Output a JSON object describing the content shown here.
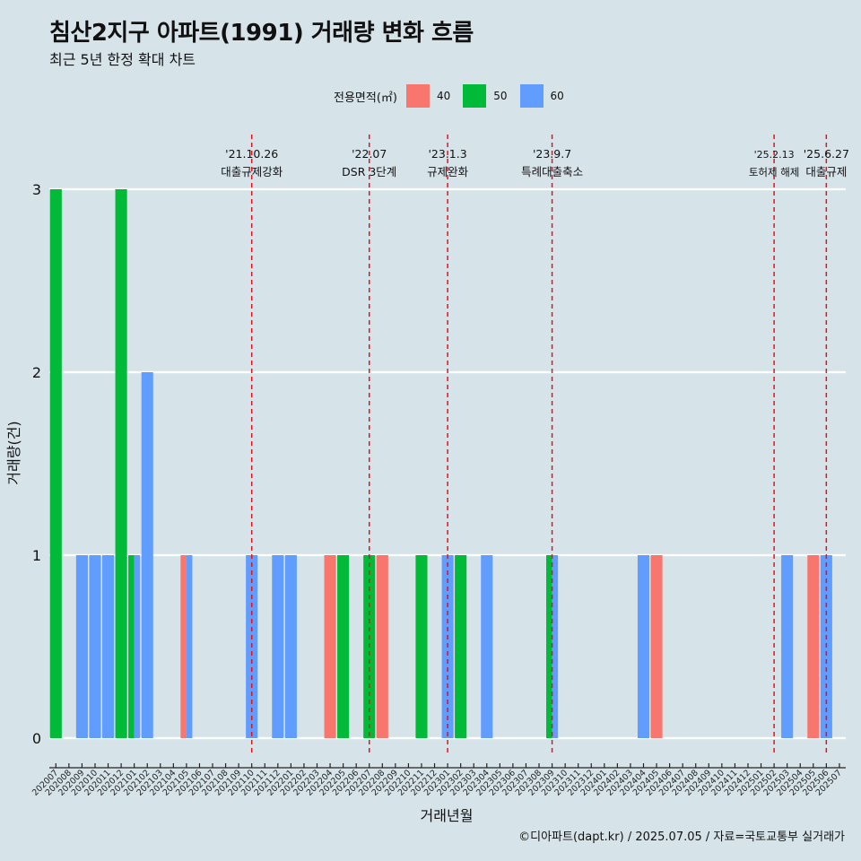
{
  "chart_data": {
    "type": "bar",
    "title": "침산2지구 아파트(1991) 거래량 변화 흐름",
    "subtitle": "최근 5년 한정 확대 차트",
    "xlabel": "거래년월",
    "ylabel": "거래량(건)",
    "ylim": [
      0,
      3
    ],
    "yticks": [
      "0",
      "1",
      "2",
      "3"
    ],
    "grid": "horizontal",
    "legend": {
      "title": "전용면적(㎡)",
      "position": "top",
      "entries": [
        {
          "name": "40",
          "color": "#f8766d"
        },
        {
          "name": "50",
          "color": "#00ba38"
        },
        {
          "name": "60",
          "color": "#619cff"
        }
      ]
    },
    "categories": [
      "202007",
      "202008",
      "202009",
      "202010",
      "202011",
      "202012",
      "202101",
      "202102",
      "202103",
      "202104",
      "202105",
      "202106",
      "202107",
      "202108",
      "202109",
      "202110",
      "202111",
      "202112",
      "202201",
      "202202",
      "202203",
      "202204",
      "202205",
      "202206",
      "202207",
      "202208",
      "202209",
      "202210",
      "202211",
      "202212",
      "202301",
      "202302",
      "202303",
      "202304",
      "202305",
      "202306",
      "202307",
      "202308",
      "202309",
      "202310",
      "202311",
      "202312",
      "202401",
      "202402",
      "202403",
      "202404",
      "202405",
      "202406",
      "202407",
      "202408",
      "202409",
      "202410",
      "202411",
      "202412",
      "202501",
      "202502",
      "202503",
      "202504",
      "202505",
      "202506",
      "202507"
    ],
    "series": [
      {
        "name": "40",
        "color": "#f8766d",
        "values": [
          0,
          0,
          0,
          0,
          0,
          0,
          0,
          0,
          0,
          0,
          1,
          0,
          0,
          0,
          0,
          0,
          0,
          0,
          0,
          0,
          0,
          1,
          0,
          0,
          0,
          1,
          0,
          0,
          0,
          0,
          0,
          0,
          0,
          0,
          0,
          0,
          0,
          0,
          0,
          0,
          0,
          0,
          0,
          0,
          0,
          0,
          1,
          0,
          0,
          0,
          0,
          0,
          0,
          0,
          0,
          0,
          0,
          0,
          1,
          0,
          0
        ]
      },
      {
        "name": "50",
        "color": "#00ba38",
        "values": [
          3,
          0,
          0,
          0,
          0,
          3,
          1,
          0,
          0,
          0,
          0,
          0,
          0,
          0,
          0,
          0,
          0,
          0,
          0,
          0,
          0,
          0,
          1,
          0,
          1,
          0,
          0,
          0,
          1,
          0,
          0,
          1,
          0,
          0,
          0,
          0,
          0,
          0,
          1,
          0,
          0,
          0,
          0,
          0,
          0,
          0,
          0,
          0,
          0,
          0,
          0,
          0,
          0,
          0,
          0,
          0,
          0,
          0,
          0,
          0,
          0
        ]
      },
      {
        "name": "60",
        "color": "#619cff",
        "values": [
          0,
          0,
          1,
          1,
          1,
          0,
          1,
          2,
          0,
          0,
          1,
          0,
          0,
          0,
          0,
          1,
          0,
          1,
          1,
          0,
          0,
          0,
          0,
          0,
          0,
          0,
          0,
          0,
          0,
          0,
          1,
          0,
          0,
          1,
          0,
          0,
          0,
          0,
          1,
          0,
          0,
          0,
          0,
          0,
          0,
          1,
          0,
          0,
          0,
          0,
          0,
          0,
          0,
          0,
          0,
          0,
          1,
          0,
          0,
          1,
          0
        ]
      }
    ],
    "events": [
      {
        "date": "'21.10.26",
        "label": "대출규제강화",
        "category": "202110"
      },
      {
        "date": "'22.07",
        "label": "DSR 3단계",
        "category": "202207"
      },
      {
        "date": "'23.1.3",
        "label": "규제완화",
        "category": "202301"
      },
      {
        "date": "'23.9.7",
        "label": "특례대출축소",
        "category": "202309"
      },
      {
        "date": "'25.2.13",
        "label": "토허제 해제",
        "category": "202502"
      },
      {
        "date": "'25.6.27",
        "label": "대출규제",
        "category": "202506"
      }
    ]
  },
  "caption": "©디아파트(dapt.kr) / 2025.07.05 / 자료=국토교통부 실거래가"
}
